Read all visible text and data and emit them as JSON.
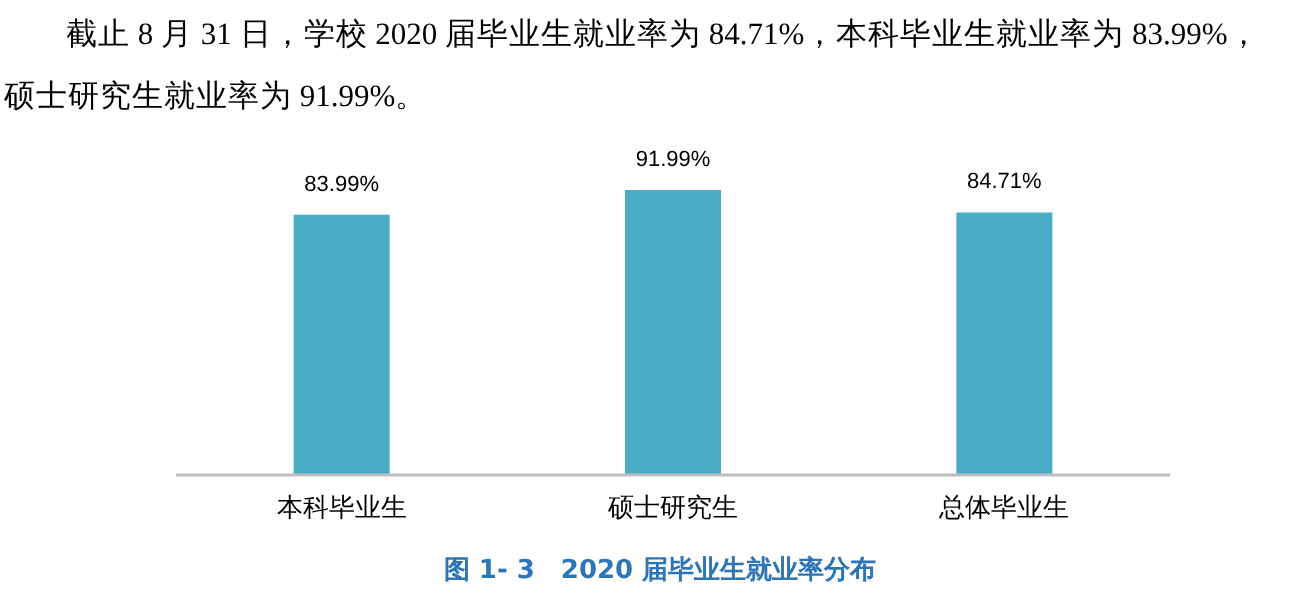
{
  "chart_data": {
    "type": "bar",
    "title": "图 1- 3　2020 届毕业生就业率分布",
    "annotations": [
      "截止 8 月 31 日，学校 2020 届毕业生就业率为 84.71%，本科毕业生就业率为 83.99%，硕士研究生就业率为 91.99%。"
    ],
    "categories": [
      "本科毕业生",
      "硕士研究生",
      "总体毕业生"
    ],
    "values": [
      83.99,
      91.99,
      84.71
    ],
    "color": "#4bacc6",
    "value_labels": [
      "83.99%",
      "91.99%",
      "84.71%"
    ]
  }
}
